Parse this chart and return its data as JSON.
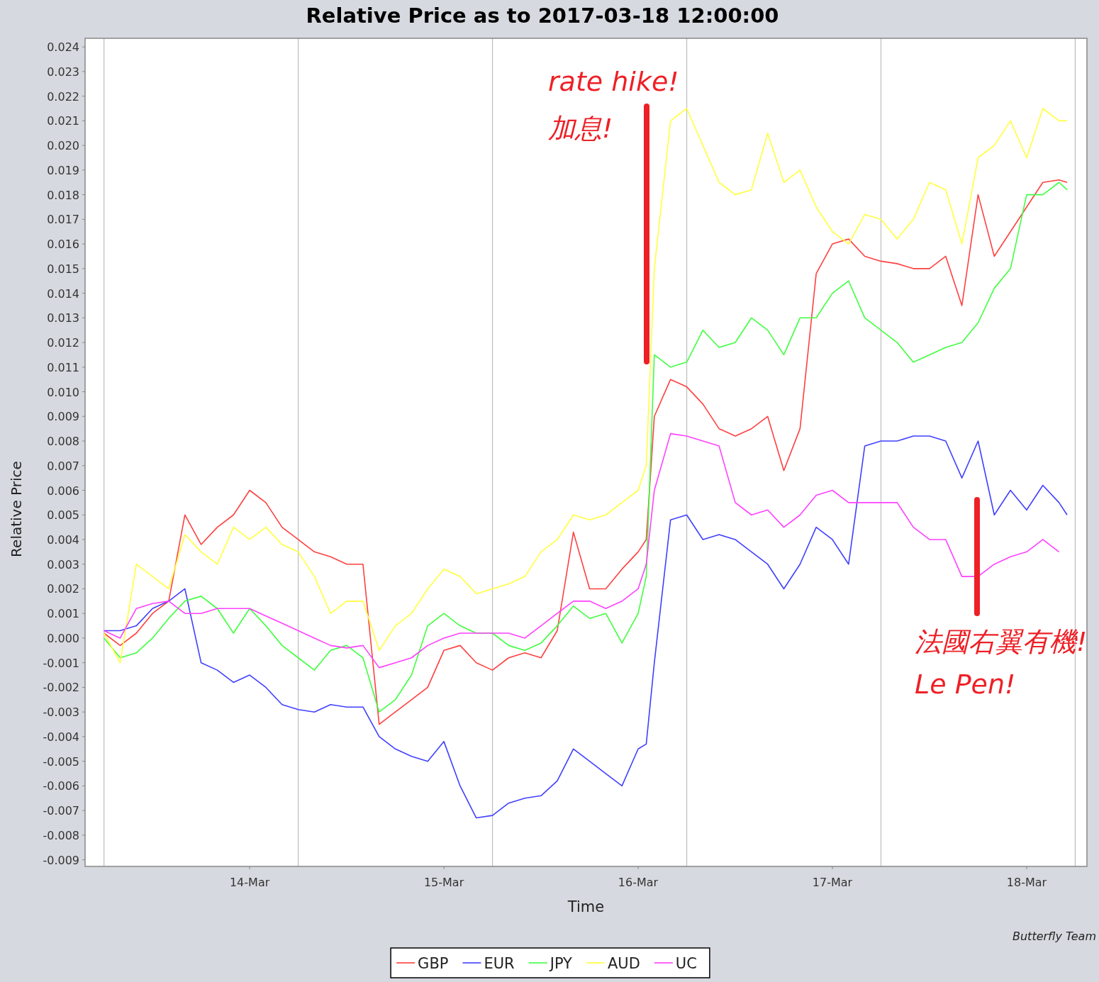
{
  "chart_data": {
    "type": "line",
    "title": "Relative Price as to 2017-03-18 12:00:00",
    "xlabel": "Time",
    "ylabel": "Relative Price",
    "x": [
      "2017-03-13T06:00",
      "2017-03-13T08:00",
      "2017-03-13T10:00",
      "2017-03-13T12:00",
      "2017-03-13T14:00",
      "2017-03-13T16:00",
      "2017-03-13T18:00",
      "2017-03-13T20:00",
      "2017-03-13T22:00",
      "2017-03-14T00:00",
      "2017-03-14T02:00",
      "2017-03-14T04:00",
      "2017-03-14T06:00",
      "2017-03-14T08:00",
      "2017-03-14T10:00",
      "2017-03-14T12:00",
      "2017-03-14T14:00",
      "2017-03-14T16:00",
      "2017-03-14T18:00",
      "2017-03-14T20:00",
      "2017-03-14T22:00",
      "2017-03-15T00:00",
      "2017-03-15T02:00",
      "2017-03-15T04:00",
      "2017-03-15T06:00",
      "2017-03-15T08:00",
      "2017-03-15T10:00",
      "2017-03-15T12:00",
      "2017-03-15T14:00",
      "2017-03-15T16:00",
      "2017-03-15T18:00",
      "2017-03-15T20:00",
      "2017-03-15T22:00",
      "2017-03-16T00:00",
      "2017-03-16T01:00",
      "2017-03-16T02:00",
      "2017-03-16T04:00",
      "2017-03-16T06:00",
      "2017-03-16T08:00",
      "2017-03-16T10:00",
      "2017-03-16T12:00",
      "2017-03-16T14:00",
      "2017-03-16T16:00",
      "2017-03-16T18:00",
      "2017-03-16T20:00",
      "2017-03-16T22:00",
      "2017-03-17T00:00",
      "2017-03-17T02:00",
      "2017-03-17T04:00",
      "2017-03-17T06:00",
      "2017-03-17T08:00",
      "2017-03-17T10:00",
      "2017-03-17T12:00",
      "2017-03-17T14:00",
      "2017-03-17T16:00",
      "2017-03-17T18:00",
      "2017-03-17T20:00",
      "2017-03-17T22:00",
      "2017-03-18T00:00",
      "2017-03-18T02:00",
      "2017-03-18T04:00",
      "2017-03-18T05:00"
    ],
    "series": [
      {
        "name": "GBP",
        "color": "#ff4040",
        "values": [
          0.0002,
          -0.0003,
          0.0002,
          0.001,
          0.0015,
          0.005,
          0.0038,
          0.0045,
          0.005,
          0.006,
          0.0055,
          0.0045,
          0.004,
          0.0035,
          0.0033,
          0.003,
          0.003,
          -0.0035,
          -0.003,
          -0.0025,
          -0.002,
          -0.0005,
          -0.0003,
          -0.001,
          -0.0013,
          -0.0008,
          -0.0006,
          -0.0008,
          0.0003,
          0.0043,
          0.002,
          0.002,
          0.0028,
          0.0035,
          0.004,
          0.009,
          0.0105,
          0.0102,
          0.0095,
          0.0085,
          0.0082,
          0.0085,
          0.009,
          0.0068,
          0.0085,
          0.0148,
          0.016,
          0.0162,
          0.0155,
          0.0153,
          0.0152,
          0.015,
          0.015,
          0.0155,
          0.0135,
          0.018,
          0.0155,
          0.0165,
          0.0175,
          0.0185,
          0.0186,
          0.0185
        ]
      },
      {
        "name": "EUR",
        "color": "#4040ff",
        "values": [
          0.0003,
          0.0003,
          0.0005,
          0.0012,
          0.0015,
          0.002,
          -0.001,
          -0.0013,
          -0.0018,
          -0.0015,
          -0.002,
          -0.0027,
          -0.0029,
          -0.003,
          -0.0027,
          -0.0028,
          -0.0028,
          -0.004,
          -0.0045,
          -0.0048,
          -0.005,
          -0.0042,
          -0.006,
          -0.0073,
          -0.0072,
          -0.0067,
          -0.0065,
          -0.0064,
          -0.0058,
          -0.0045,
          -0.005,
          -0.0055,
          -0.006,
          -0.0045,
          -0.0043,
          -0.001,
          0.0048,
          0.005,
          0.004,
          0.0042,
          0.004,
          0.0035,
          0.003,
          0.002,
          0.003,
          0.0045,
          0.004,
          0.003,
          0.0078,
          0.008,
          0.008,
          0.0082,
          0.0082,
          0.008,
          0.0065,
          0.008,
          0.005,
          0.006,
          0.0052,
          0.0062,
          0.0055,
          0.005
        ]
      },
      {
        "name": "JPY",
        "color": "#40ff40",
        "values": [
          0.0,
          -0.0008,
          -0.0006,
          0.0,
          0.0008,
          0.0015,
          0.0017,
          0.0012,
          0.0002,
          0.0012,
          0.0005,
          -0.0003,
          -0.0008,
          -0.0013,
          -0.0005,
          -0.0003,
          -0.0008,
          -0.003,
          -0.0025,
          -0.0015,
          0.0005,
          0.001,
          0.0005,
          0.0002,
          0.0002,
          -0.0003,
          -0.0005,
          -0.0002,
          0.0005,
          0.0013,
          0.0008,
          0.001,
          -0.0002,
          0.001,
          0.0025,
          0.0115,
          0.011,
          0.0112,
          0.0125,
          0.0118,
          0.012,
          0.013,
          0.0125,
          0.0115,
          0.013,
          0.013,
          0.014,
          0.0145,
          0.013,
          0.0125,
          0.012,
          0.0112,
          0.0115,
          0.0118,
          0.012,
          0.0128,
          0.0142,
          0.015,
          0.018,
          0.018,
          0.0185,
          0.0182
        ]
      },
      {
        "name": "AUD",
        "color": "#ffff40",
        "values": [
          0.0002,
          -0.001,
          0.003,
          0.0025,
          0.002,
          0.0042,
          0.0035,
          0.003,
          0.0045,
          0.004,
          0.0045,
          0.0038,
          0.0035,
          0.0025,
          0.001,
          0.0015,
          0.0015,
          -0.0005,
          0.0005,
          0.001,
          0.002,
          0.0028,
          0.0025,
          0.0018,
          0.002,
          0.0022,
          0.0025,
          0.0035,
          0.004,
          0.005,
          0.0048,
          0.005,
          0.0055,
          0.006,
          0.007,
          0.015,
          0.021,
          0.0215,
          0.02,
          0.0185,
          0.018,
          0.0182,
          0.0205,
          0.0185,
          0.019,
          0.0175,
          0.0165,
          0.016,
          0.0172,
          0.017,
          0.0162,
          0.017,
          0.0185,
          0.0182,
          0.016,
          0.0195,
          0.02,
          0.021,
          0.0195,
          0.0215,
          0.021,
          0.021
        ]
      },
      {
        "name": "UC",
        "color": "#ff40ff",
        "values": [
          0.0003,
          0.0,
          0.0012,
          0.0014,
          0.0015,
          0.001,
          0.001,
          0.0012,
          0.0012,
          0.0012,
          0.0009,
          0.0006,
          0.0003,
          0.0,
          -0.0003,
          -0.0004,
          -0.0003,
          -0.0012,
          -0.001,
          -0.0008,
          -0.0003,
          0.0,
          0.0002,
          0.0002,
          0.0002,
          0.0002,
          0.0,
          0.0005,
          0.001,
          0.0015,
          0.0015,
          0.0012,
          0.0015,
          0.002,
          0.003,
          0.006,
          0.0083,
          0.0082,
          0.008,
          0.0078,
          0.0055,
          0.005,
          0.0052,
          0.0045,
          0.005,
          0.0058,
          0.006,
          0.0055,
          0.0055,
          0.0055,
          0.0055,
          0.0045,
          0.004,
          0.004,
          0.0025,
          0.0025,
          0.003,
          0.0033,
          0.0035,
          0.004,
          0.0035,
          null
        ]
      }
    ],
    "xlim": [
      "2017-03-13T03:40",
      "2017-03-18T07:27"
    ],
    "xticks": [
      {
        "value": "2017-03-14",
        "label": "14-Mar"
      },
      {
        "value": "2017-03-15",
        "label": "15-Mar"
      },
      {
        "value": "2017-03-16",
        "label": "16-Mar"
      },
      {
        "value": "2017-03-17",
        "label": "17-Mar"
      },
      {
        "value": "2017-03-18",
        "label": "18-Mar"
      }
    ],
    "ylim": [
      -0.00927,
      0.02435
    ],
    "yticks": [
      {
        "value": -0.009,
        "label": "-0.009"
      },
      {
        "value": -0.008,
        "label": "-0.008"
      },
      {
        "value": -0.007,
        "label": "-0.007"
      },
      {
        "value": -0.006,
        "label": "-0.006"
      },
      {
        "value": -0.005,
        "label": "-0.005"
      },
      {
        "value": -0.004,
        "label": "-0.004"
      },
      {
        "value": -0.003,
        "label": "-0.003"
      },
      {
        "value": -0.002,
        "label": "-0.002"
      },
      {
        "value": -0.001,
        "label": "-0.001"
      },
      {
        "value": 0,
        "label": "0.000"
      },
      {
        "value": 0.001,
        "label": "0.001"
      },
      {
        "value": 0.002,
        "label": "0.002"
      },
      {
        "value": 0.003,
        "label": "0.003"
      },
      {
        "value": 0.004,
        "label": "0.004"
      },
      {
        "value": 0.005,
        "label": "0.005"
      },
      {
        "value": 0.006,
        "label": "0.006"
      },
      {
        "value": 0.007,
        "label": "0.007"
      },
      {
        "value": 0.008,
        "label": "0.008"
      },
      {
        "value": 0.009,
        "label": "0.009"
      },
      {
        "value": 0.01,
        "label": "0.010"
      },
      {
        "value": 0.011,
        "label": "0.011"
      },
      {
        "value": 0.012,
        "label": "0.012"
      },
      {
        "value": 0.013,
        "label": "0.013"
      },
      {
        "value": 0.014,
        "label": "0.014"
      },
      {
        "value": 0.015,
        "label": "0.015"
      },
      {
        "value": 0.016,
        "label": "0.016"
      },
      {
        "value": 0.017,
        "label": "0.017"
      },
      {
        "value": 0.018,
        "label": "0.018"
      },
      {
        "value": 0.019,
        "label": "0.019"
      },
      {
        "value": 0.02,
        "label": "0.020"
      },
      {
        "value": 0.021,
        "label": "0.021"
      },
      {
        "value": 0.022,
        "label": "0.022"
      },
      {
        "value": 0.023,
        "label": "0.023"
      },
      {
        "value": 0.024,
        "label": "0.024"
      }
    ],
    "ref_lines": [
      {
        "axis": "x",
        "value": "2017-03-13T06:00",
        "color": "#c0c0c0"
      },
      {
        "axis": "x",
        "value": "2017-03-14T06:00",
        "color": "#c0c0c0"
      },
      {
        "axis": "x",
        "value": "2017-03-15T06:00",
        "color": "#c0c0c0"
      },
      {
        "axis": "x",
        "value": "2017-03-16T06:00",
        "color": "#c0c0c0"
      },
      {
        "axis": "x",
        "value": "2017-03-17T06:00",
        "color": "#c0c0c0"
      },
      {
        "axis": "x",
        "value": "2017-03-18T06:00",
        "color": "#c0c0c0"
      }
    ],
    "annotations": [
      "rate hike!\n加息!",
      "法國右翼有機!\nLe Pen!",
      "Butterfly Team"
    ],
    "legend": "bottom"
  }
}
